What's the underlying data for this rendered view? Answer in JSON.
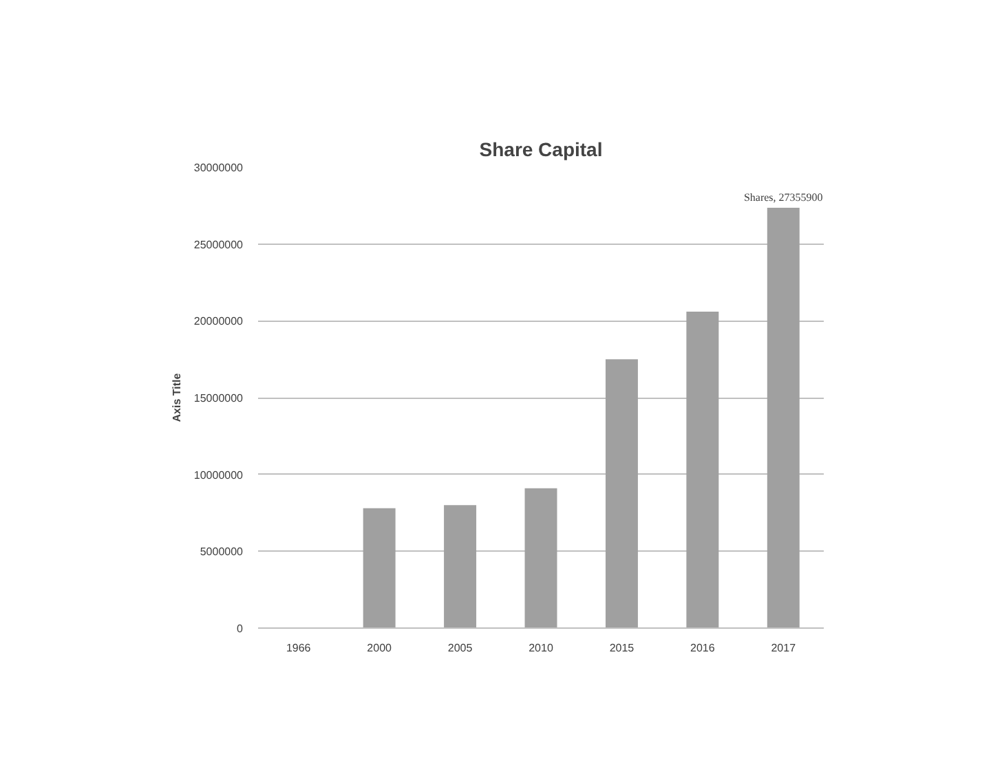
{
  "chart_data": {
    "type": "bar",
    "title": "Share Capital",
    "ylabel": "Axis Title",
    "categories": [
      "1966",
      "2000",
      "2005",
      "2010",
      "2015",
      "2016",
      "2017"
    ],
    "values": [
      0,
      7800000,
      8000000,
      9100000,
      17500000,
      20600000,
      27355900
    ],
    "value_labels": [
      null,
      null,
      null,
      null,
      null,
      null,
      "Shares, 27355900"
    ],
    "color": "#a0a0a0",
    "ylim": [
      0,
      30000000
    ],
    "yticks": [
      0,
      5000000,
      10000000,
      15000000,
      20000000,
      25000000,
      30000000
    ],
    "grid": "y"
  }
}
